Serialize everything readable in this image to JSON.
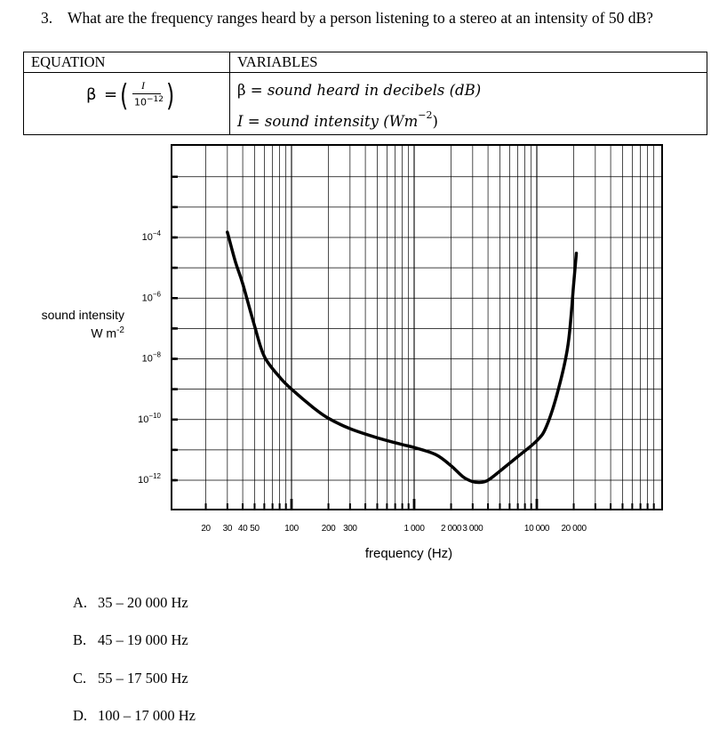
{
  "question": {
    "number": "3.",
    "text": "What are the frequency ranges heard by a person listening to a stereo at an intensity of 50 dB?"
  },
  "table": {
    "equation_header": "EQUATION",
    "variables_header": "VARIABLES",
    "formula": {
      "lhs": "β",
      "equals": "=",
      "numerator": "I",
      "denominator": "10",
      "denominator_exp": "−12"
    },
    "variables": [
      {
        "symbol": "β",
        "equals": "=",
        "meaning": "sound heard in decibels (dB)",
        "unit_sup": ""
      },
      {
        "symbol": "I",
        "equals": "=",
        "meaning": "sound intensity (Wm",
        "unit_sup": "−2",
        "close": ")"
      }
    ]
  },
  "chart_data": {
    "type": "line",
    "xlabel": "frequency (Hz)",
    "ylabel": "sound intensity",
    "ylabel_unit": "W m",
    "ylabel_unit_sup": "-2",
    "x_scale": "log",
    "y_scale": "log",
    "x_ticks": [
      {
        "value": 20,
        "label": "20"
      },
      {
        "value": 30,
        "label": "30"
      },
      {
        "value": 40,
        "label": "40"
      },
      {
        "value": 50,
        "label": "50"
      },
      {
        "value": 100,
        "label": "100"
      },
      {
        "value": 200,
        "label": "200"
      },
      {
        "value": 300,
        "label": "300"
      },
      {
        "value": 1000,
        "label": "1 000"
      },
      {
        "value": 2000,
        "label": "2 000"
      },
      {
        "value": 3000,
        "label": "3 000"
      },
      {
        "value": 10000,
        "label": "10 000"
      },
      {
        "value": 20000,
        "label": "20 000"
      }
    ],
    "y_ticks": [
      {
        "base": "10",
        "exp": "−4",
        "value": 0.0001
      },
      {
        "base": "10",
        "exp": "−6",
        "value": 1e-06
      },
      {
        "base": "10",
        "exp": "−8",
        "value": 1e-08
      },
      {
        "base": "10",
        "exp": "−10",
        "value": 1e-10
      },
      {
        "base": "10",
        "exp": "−12",
        "value": 1e-12
      }
    ],
    "ylim": [
      3e-13,
      0.01
    ],
    "xlim": [
      10,
      50000
    ],
    "grid": true,
    "series": [
      {
        "points": [
          {
            "x": 30,
            "y": 0.00015
          },
          {
            "x": 35,
            "y": 1.5e-05
          },
          {
            "x": 40,
            "y": 3e-06
          },
          {
            "x": 50,
            "y": 1.2e-07
          },
          {
            "x": 60,
            "y": 1.2e-08
          },
          {
            "x": 80,
            "y": 2.5e-09
          },
          {
            "x": 100,
            "y": 1e-09
          },
          {
            "x": 150,
            "y": 2.5e-10
          },
          {
            "x": 200,
            "y": 1.1e-10
          },
          {
            "x": 300,
            "y": 5e-11
          },
          {
            "x": 500,
            "y": 2.5e-11
          },
          {
            "x": 800,
            "y": 1.5e-11
          },
          {
            "x": 1000,
            "y": 1.2e-11
          },
          {
            "x": 1500,
            "y": 7e-12
          },
          {
            "x": 2000,
            "y": 3e-12
          },
          {
            "x": 2500,
            "y": 1.3e-12
          },
          {
            "x": 3000,
            "y": 9e-13
          },
          {
            "x": 3500,
            "y": 8.5e-13
          },
          {
            "x": 4000,
            "y": 1e-12
          },
          {
            "x": 5000,
            "y": 2e-12
          },
          {
            "x": 7000,
            "y": 6e-12
          },
          {
            "x": 10000,
            "y": 2e-11
          },
          {
            "x": 12000,
            "y": 6e-11
          },
          {
            "x": 15000,
            "y": 1e-09
          },
          {
            "x": 18000,
            "y": 3e-08
          },
          {
            "x": 20000,
            "y": 3e-06
          },
          {
            "x": 21000,
            "y": 3e-05
          }
        ]
      }
    ]
  },
  "answers": [
    {
      "letter": "A.",
      "text": "35 – 20 000 Hz"
    },
    {
      "letter": "B.",
      "text": "45 – 19 000 Hz"
    },
    {
      "letter": "C.",
      "text": "55 – 17 500 Hz"
    },
    {
      "letter": "D.",
      "text": "100 – 17 000 Hz"
    }
  ]
}
